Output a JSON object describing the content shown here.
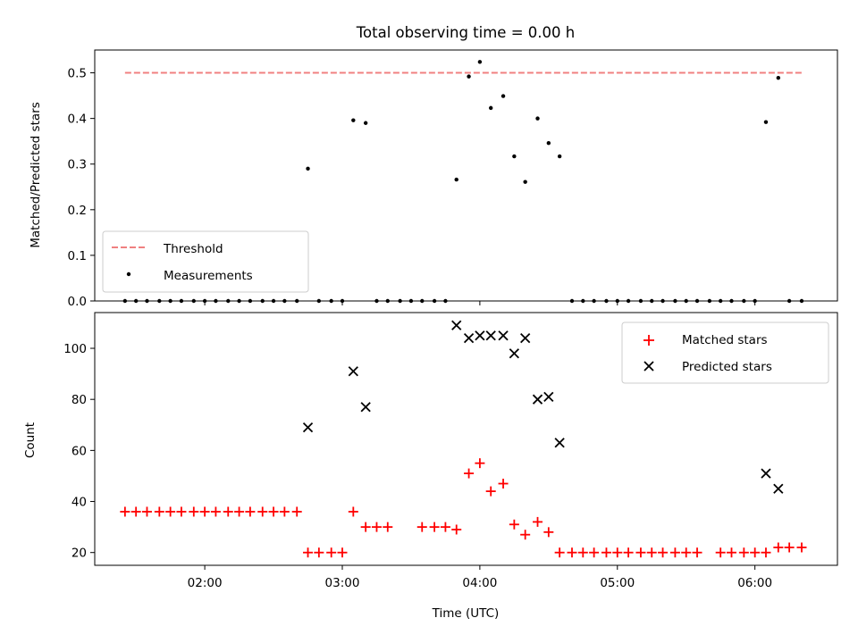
{
  "chart_data": [
    {
      "type": "scatter",
      "title": "Total observing time = 0.00 h",
      "ylabel": "Matched/Predicted stars",
      "xlabel": "",
      "xlim": [
        1.2,
        6.6
      ],
      "ylim": [
        0,
        0.55
      ],
      "yticks": [
        0.0,
        0.1,
        0.2,
        0.3,
        0.4,
        0.5
      ],
      "ytick_labels": [
        "0.0",
        "0.1",
        "0.2",
        "0.3",
        "0.4",
        "0.5"
      ],
      "xticks": [
        2,
        3,
        4,
        5,
        6
      ],
      "legend": {
        "position": "lower-left",
        "entries": [
          "Threshold",
          "Measurements"
        ]
      },
      "threshold": {
        "name": "Threshold",
        "value": 0.5,
        "x_range": [
          1.42,
          6.34
        ],
        "color": "#f08080"
      },
      "series": [
        {
          "name": "Measurements",
          "color": "#000000",
          "x": [
            1.42,
            1.5,
            1.58,
            1.67,
            1.75,
            1.83,
            1.92,
            2.0,
            2.08,
            2.17,
            2.25,
            2.33,
            2.42,
            2.5,
            2.58,
            2.67,
            2.75,
            2.83,
            2.92,
            3.0,
            3.08,
            3.17,
            3.25,
            3.33,
            3.42,
            3.5,
            3.58,
            3.67,
            3.75,
            3.83,
            3.92,
            4.0,
            4.08,
            4.17,
            4.25,
            4.33,
            4.42,
            4.5,
            4.58,
            4.67,
            4.75,
            4.83,
            4.92,
            5.0,
            5.08,
            5.17,
            5.25,
            5.33,
            5.42,
            5.5,
            5.58,
            5.67,
            5.75,
            5.83,
            5.92,
            6.0,
            6.08,
            6.17,
            6.25,
            6.34
          ],
          "y": [
            0,
            0,
            0,
            0,
            0,
            0,
            0,
            0,
            0,
            0,
            0,
            0,
            0,
            0,
            0,
            0,
            0.29,
            0,
            0,
            0,
            0.396,
            0.39,
            0,
            0,
            0,
            0,
            0,
            0,
            0,
            0.266,
            0.492,
            0.524,
            0.423,
            0.449,
            0.317,
            0.261,
            0.4,
            0.346,
            0.317,
            0,
            0,
            0,
            0,
            0,
            0,
            0,
            0,
            0,
            0,
            0,
            0,
            0,
            0,
            0,
            0,
            0,
            0.392,
            0.489,
            0,
            0
          ]
        }
      ]
    },
    {
      "type": "scatter",
      "title": "",
      "ylabel": "Count",
      "xlabel": "Time (UTC)",
      "xlim": [
        1.2,
        6.6
      ],
      "ylim": [
        15,
        114
      ],
      "yticks": [
        20,
        40,
        60,
        80,
        100
      ],
      "ytick_labels": [
        "20",
        "40",
        "60",
        "80",
        "100"
      ],
      "xticks": [
        2,
        3,
        4,
        5,
        6
      ],
      "xtick_labels": [
        "02:00",
        "03:00",
        "04:00",
        "05:00",
        "06:00"
      ],
      "legend": {
        "position": "upper-right",
        "entries": [
          "Matched stars",
          "Predicted stars"
        ]
      },
      "series": [
        {
          "name": "Matched stars",
          "marker": "plus",
          "color": "#ff0000",
          "x": [
            1.42,
            1.5,
            1.58,
            1.67,
            1.75,
            1.83,
            1.92,
            2.0,
            2.08,
            2.17,
            2.25,
            2.33,
            2.42,
            2.5,
            2.58,
            2.67,
            2.75,
            2.83,
            2.92,
            3.0,
            3.08,
            3.17,
            3.25,
            3.33,
            3.58,
            3.67,
            3.75,
            3.83,
            3.92,
            4.0,
            4.08,
            4.17,
            4.25,
            4.33,
            4.42,
            4.5,
            4.58,
            4.67,
            4.75,
            4.83,
            4.92,
            5.0,
            5.08,
            5.17,
            5.25,
            5.33,
            5.42,
            5.5,
            5.58,
            5.75,
            5.83,
            5.92,
            6.0,
            6.08,
            6.17,
            6.25,
            6.34
          ],
          "y": [
            36,
            36,
            36,
            36,
            36,
            36,
            36,
            36,
            36,
            36,
            36,
            36,
            36,
            36,
            36,
            36,
            20,
            20,
            20,
            20,
            36,
            30,
            30,
            30,
            30,
            30,
            30,
            29,
            51,
            55,
            44,
            47,
            31,
            27,
            32,
            28,
            20,
            20,
            20,
            20,
            20,
            20,
            20,
            20,
            20,
            20,
            20,
            20,
            20,
            20,
            20,
            20,
            20,
            20,
            22,
            22,
            22
          ]
        },
        {
          "name": "Predicted stars",
          "marker": "x",
          "color": "#000000",
          "x": [
            2.75,
            3.08,
            3.17,
            3.83,
            3.92,
            4.0,
            4.08,
            4.17,
            4.25,
            4.33,
            4.42,
            4.5,
            4.58,
            6.08,
            6.17
          ],
          "y": [
            69,
            91,
            77,
            109,
            104,
            105,
            105,
            105,
            98,
            104,
            80,
            81,
            63,
            51,
            45
          ]
        }
      ]
    }
  ]
}
